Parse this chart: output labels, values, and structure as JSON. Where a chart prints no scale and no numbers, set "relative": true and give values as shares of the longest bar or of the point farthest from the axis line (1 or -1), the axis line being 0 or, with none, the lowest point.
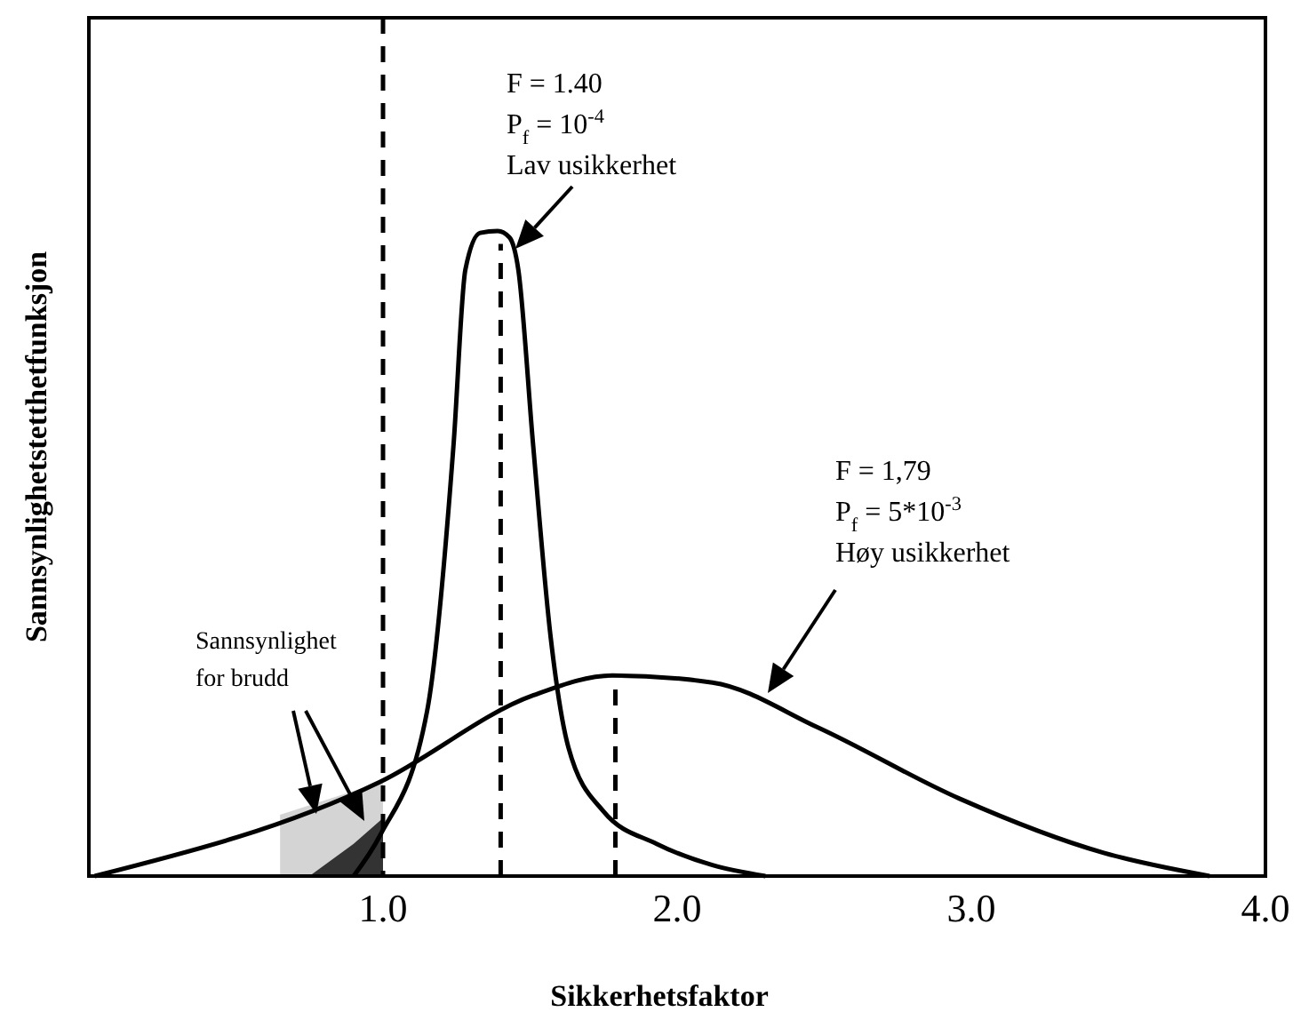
{
  "chart_data": {
    "type": "line",
    "relative": true,
    "xlabel": "Sikkerhetsfaktor",
    "ylabel": "Sannsynlighetstetthetfunksjon",
    "xlim": [
      0,
      4.0
    ],
    "xticks": [
      {
        "value": 0,
        "label": null
      },
      {
        "value": 1,
        "label": "1.0"
      },
      {
        "value": 2,
        "label": "2.0"
      },
      {
        "value": 3,
        "label": "3.0"
      },
      {
        "value": 4,
        "label": "4.0"
      }
    ],
    "grid": false,
    "series": [
      {
        "type": "area",
        "color": "#d4d4d4",
        "x": [
          0.65,
          0.8,
          0.9,
          1.0
        ],
        "values": [
          0.095,
          0.117,
          0.132,
          0.146
        ]
      },
      {
        "type": "area",
        "color": "#333333",
        "x": [
          0.75,
          0.9,
          1.0
        ],
        "values": [
          0,
          0.05,
          0.09
        ]
      },
      {
        "color": "#000000",
        "line_style": "solid",
        "x": [
          0.9,
          0.99,
          1.15,
          1.24,
          1.28,
          1.33,
          1.39,
          1.43,
          1.46,
          1.51,
          1.57,
          1.63,
          1.75,
          1.93,
          2.12,
          2.3
        ],
        "values": [
          0,
          0.063,
          0.256,
          0.67,
          0.94,
          0.997,
          1.0,
          0.99,
          0.94,
          0.67,
          0.37,
          0.2,
          0.1,
          0.05,
          0.017,
          0
        ]
      },
      {
        "color": "#000000",
        "line_style": "solid",
        "x": [
          0.02,
          0.99,
          1.51,
          1.78,
          2.12,
          2.48,
          2.96,
          3.45,
          3.81
        ],
        "values": [
          0,
          0.146,
          0.28,
          0.311,
          0.3,
          0.23,
          0.12,
          0.036,
          0
        ]
      },
      {
        "type": "line",
        "color": "#000000",
        "line_style": "dashed",
        "x": [
          1.4,
          1.4
        ],
        "values": [
          0,
          0.98
        ]
      },
      {
        "type": "line",
        "color": "#000000",
        "line_style": "dashed",
        "x": [
          1.79,
          1.79
        ],
        "values": [
          0,
          0.31
        ]
      }
    ],
    "ref_lines": [
      {
        "axis": "x",
        "value": 1.0,
        "line_style": "dashed",
        "color": "#000000"
      }
    ],
    "annotations": [
      "F = 1.40\nP$_{f}$ = 10$^{-4}$\nLav usikkerhet",
      "F = 1,79\nP$_{f}$ = 5*10$^{-3}$\nHøy usikkerhet",
      "Sannsynlighet\nfor brudd"
    ]
  }
}
